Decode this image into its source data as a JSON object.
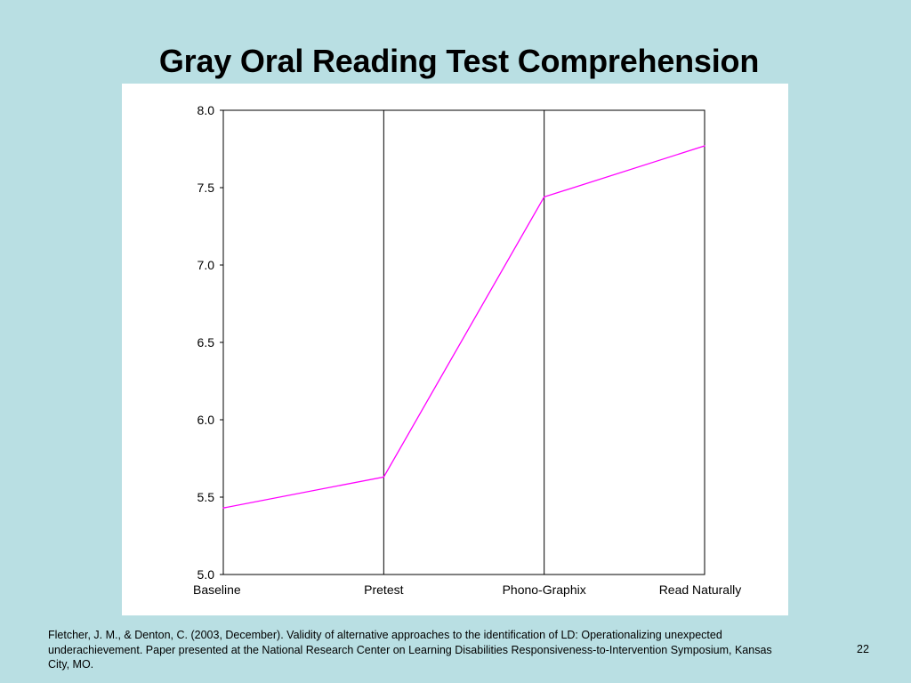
{
  "slide": {
    "title": "Gray Oral Reading Test Comprehension",
    "citation": "Fletcher, J. M., & Denton, C.  (2003, December). Validity of alternative approaches to the identification of LD: Operationalizing unexpected underachievement. Paper presented at the National Research Center on Learning Disabilities Responsiveness-to-Intervention Symposium, Kansas City, MO.",
    "slide_number": "22",
    "background_color": "#b9dfe3"
  },
  "chart_data": {
    "type": "line",
    "title": "",
    "xlabel": "",
    "ylabel": "",
    "categories": [
      "Baseline",
      "Pretest",
      "Phono-Graphix",
      "Read Naturally"
    ],
    "series": [
      {
        "values": [
          5.43,
          5.63,
          7.44,
          7.77
        ],
        "color": "#ff00ff"
      }
    ],
    "ylim": [
      5.0,
      8.0
    ],
    "yticks": [
      "5.0",
      "5.5",
      "6.0",
      "6.5",
      "7.0",
      "7.5",
      "8.0"
    ],
    "phase_separators": [
      "Pretest",
      "Phono-Graphix"
    ],
    "grid": false,
    "legend": "none"
  }
}
